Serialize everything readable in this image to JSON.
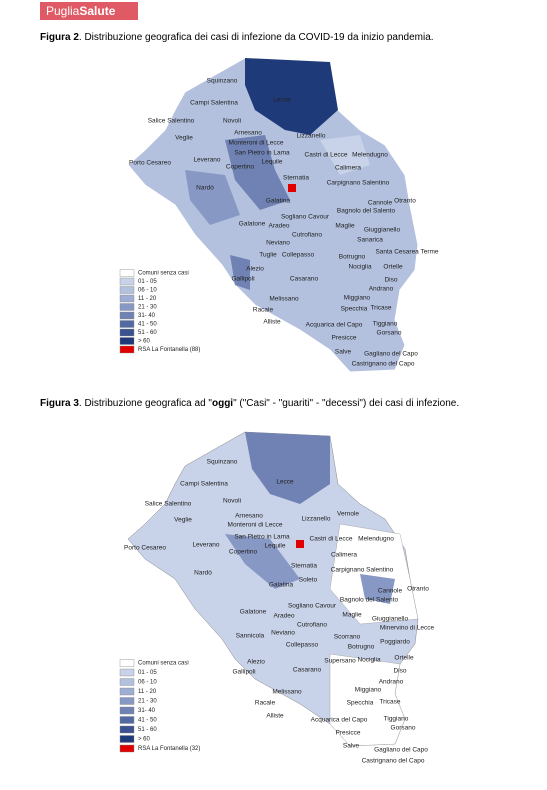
{
  "header": {
    "brand_1": "Puglia",
    "brand_2": "Salute"
  },
  "figures": [
    {
      "caption": [
        {
          "text": "Figura 2",
          "bold": true
        },
        {
          "text": ". Distribuzione  geografica dei  casi di infezione  da  COVID-19 da inizio pandemia.",
          "bold": false
        }
      ],
      "towns": [
        "Squinzano",
        "Lecce",
        "Campi Salentina",
        "Novoli",
        "Salice Salentino",
        "Veglie",
        "Arnesano",
        "Lizzanello",
        "Monteroni di Lecce",
        "San Pietro in Lama",
        "Castri di Lecce",
        "Melendugno",
        "Leverano",
        "Lequile",
        "Porto Cesareo",
        "Copertino",
        "Calimera",
        "Sternatia",
        "Carpignano Salentino",
        "Nardò",
        "Galatina",
        "Cannole",
        "Otranto",
        "Bagnolo del Salento",
        "Sogliano Cavour",
        "Galatone",
        "Aradeo",
        "Maglie",
        "Giuggianello",
        "Cutrofiano",
        "Sanarica",
        "Neviano",
        "Tuglie",
        "Collepasso",
        "Botrugno",
        "Santa Cesarea Terme",
        "Nociglia",
        "Ortelle",
        "Alezio",
        "Gallipoli",
        "Casarano",
        "Diso",
        "Andrano",
        "Melissano",
        "Miggiano",
        "Racale",
        "Specchia",
        "Tricase",
        "Alliste",
        "Acquarica del Capo",
        "Tiggiano",
        "Gorsano",
        "Presicce",
        "Salve",
        "Gagliano del Capo",
        "Castrignano del Capo"
      ],
      "legend": [
        {
          "label": "Comuni senza casi",
          "color": "#ffffff"
        },
        {
          "label": "01 - 05",
          "color": "#c8d2e8"
        },
        {
          "label": "06 - 10",
          "color": "#b3c1df"
        },
        {
          "label": "11 - 20",
          "color": "#9dadd4"
        },
        {
          "label": "21 - 30",
          "color": "#8798c5"
        },
        {
          "label": "31- 40",
          "color": "#6f82b3"
        },
        {
          "label": "41 - 50",
          "color": "#5369a2"
        },
        {
          "label": "51 - 60",
          "color": "#3a528e"
        },
        {
          "label": "> 60",
          "color": "#1f3a78"
        },
        {
          "label": "RSA La Fontanella (88)",
          "color": "#e00000"
        }
      ]
    },
    {
      "caption": [
        {
          "text": "Figura 3",
          "bold": true
        },
        {
          "text": ". Distribuzione  geografica ad \"",
          "bold": false
        },
        {
          "text": "oggi",
          "bold": true
        },
        {
          "text": "\"  (\"Casi\" - \"guariti\" - \"decessi\")  dei  casi di infezione.",
          "bold": false
        }
      ],
      "towns": [
        "Squinzano",
        "Lecce",
        "Campi Salentina",
        "Salice Salentino",
        "Novoli",
        "Veglie",
        "Arnesano",
        "Vernole",
        "Lizzanello",
        "Monteroni di Lecce",
        "San Pietro in Lama",
        "Castri di Lecce",
        "Melendugno",
        "Leverano",
        "Lequile",
        "Porto Cesareo",
        "Copertino",
        "Calimera",
        "Sternatia",
        "Carpignano Salentino",
        "Soleto",
        "Nardò",
        "Galatina",
        "Cannole",
        "Otranto",
        "Bagnolo del Salento",
        "Sogliano Cavour",
        "Galatone",
        "Aradeo",
        "Maglie",
        "Giuggianello",
        "Minervino di Lecce",
        "Cutrofiano",
        "Sannicola",
        "Neviano",
        "Scorrano",
        "Poggiardo",
        "Collepasso",
        "Botrugno",
        "Supersano",
        "Nociglia",
        "Ortelle",
        "Alezio",
        "Gallipoli",
        "Casarano",
        "Diso",
        "Andrano",
        "Melissano",
        "Miggiano",
        "Racale",
        "Specchia",
        "Tricase",
        "Alliste",
        "Acquarica del Capo",
        "Tiggiano",
        "Gorsano",
        "Presicce",
        "Salve",
        "Gagliano del Capo",
        "Castrignano del Capo"
      ],
      "legend": [
        {
          "label": "Comuni senza casi",
          "color": "#ffffff"
        },
        {
          "label": "01 - 05",
          "color": "#c8d2e8"
        },
        {
          "label": "06 - 10",
          "color": "#b3c1df"
        },
        {
          "label": "11 - 20",
          "color": "#9dadd4"
        },
        {
          "label": "21 - 30",
          "color": "#8798c5"
        },
        {
          "label": "31- 40",
          "color": "#6f82b3"
        },
        {
          "label": "41 - 50",
          "color": "#5369a2"
        },
        {
          "label": "51 - 60",
          "color": "#3a528e"
        },
        {
          "label": "> 60",
          "color": "#1f3a78"
        },
        {
          "label": "RSA La Fontanella (32)",
          "color": "#e00000"
        }
      ]
    }
  ]
}
